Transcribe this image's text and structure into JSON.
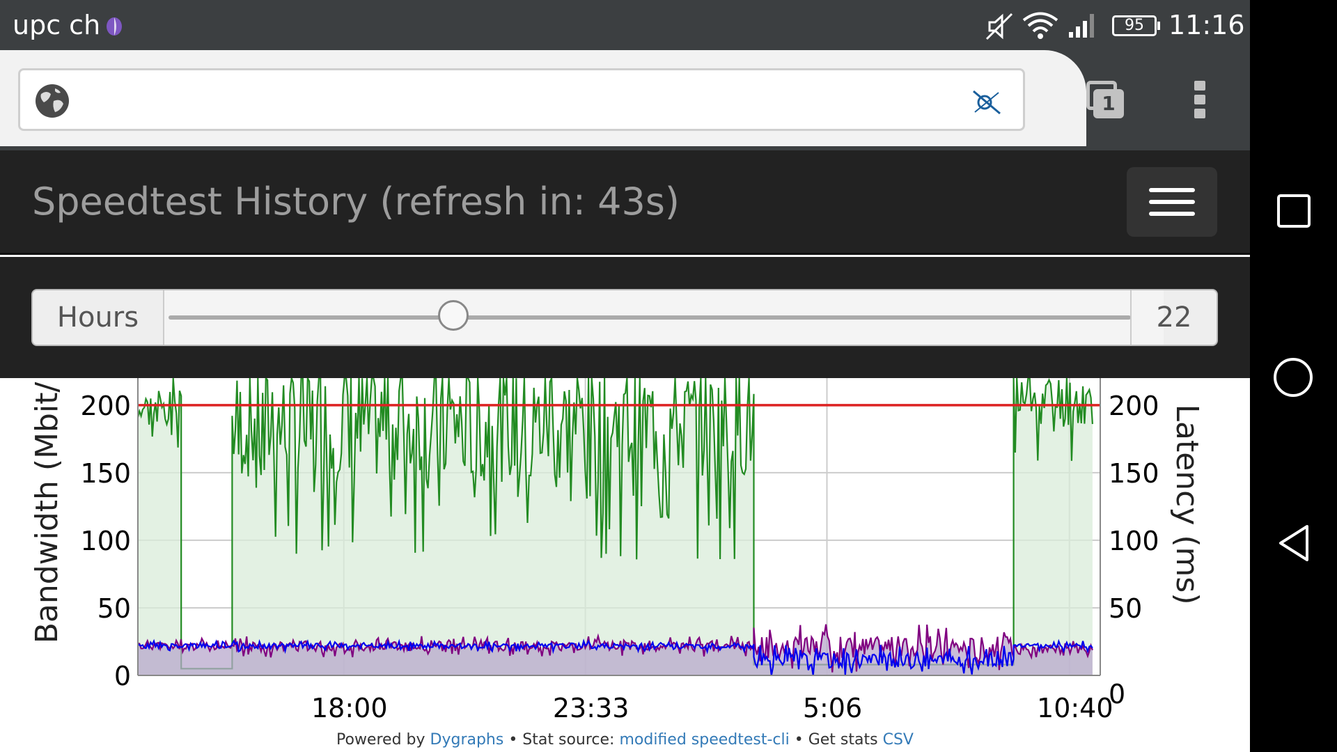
{
  "status_bar": {
    "carrier": "upc ch",
    "battery": "95",
    "time": "11:16"
  },
  "browser": {
    "url": "",
    "tab_count": "1"
  },
  "navbar": {
    "title": "Speedtest History (refresh in: 43s)"
  },
  "hours_control": {
    "label": "Hours",
    "value": "22",
    "slider_min": 1,
    "slider_max": 72
  },
  "footer": {
    "powered_prefix": "Powered by ",
    "dygraphs_link": "Dygraphs",
    "sep1": " • Stat source: ",
    "source_link": "modified speedtest-cli",
    "sep2": " • Get stats ",
    "csv_link": "CSV"
  },
  "chart_data": {
    "type": "line",
    "ylabel": "Bandwidth (Mbit/",
    "y2label": "Latency (ms)",
    "ylim": [
      0,
      220
    ],
    "y2lim": [
      0,
      220
    ],
    "y_ticks": [
      0,
      50,
      100,
      150,
      200
    ],
    "y2_ticks": [
      0,
      50,
      100,
      150,
      200
    ],
    "y_tick_labels": [
      "0",
      "50",
      "100",
      "150",
      "200"
    ],
    "y2_tick_labels": [
      "0",
      "50",
      "100",
      "150",
      "200"
    ],
    "xlim": [
      0,
      1
    ],
    "x_ticks": [
      0.214,
      0.465,
      0.716,
      0.968
    ],
    "x_tick_labels": [
      "18:00",
      "23:33",
      "5:06",
      "10:40"
    ],
    "grid": true,
    "threshold_line": {
      "value": 200,
      "color": "#dd2222"
    },
    "series": [
      {
        "color": "#228b22",
        "fill": "#d9ecd9",
        "segments": [
          {
            "x0": 0.0,
            "x1": 0.045,
            "base": 200,
            "amp": 30,
            "seed": 3
          },
          {
            "x0": 0.045,
            "x1": 0.098,
            "flat": 5
          },
          {
            "x0": 0.098,
            "x1": 0.64,
            "base": 190,
            "amp": 95,
            "seed": 7
          },
          {
            "x0": 0.64,
            "x1": 0.91,
            "flat": 8
          },
          {
            "x0": 0.91,
            "x1": 0.992,
            "base": 205,
            "amp": 45,
            "seed": 11
          }
        ]
      },
      {
        "color": "#800080",
        "fill": "#b8a8cc",
        "segments": [
          {
            "x0": 0.0,
            "x1": 0.098,
            "base": 22,
            "amp": 6,
            "seed": 5
          },
          {
            "x0": 0.098,
            "x1": 0.64,
            "base": 22,
            "amp": 8,
            "seed": 13
          },
          {
            "x0": 0.64,
            "x1": 0.91,
            "base": 22,
            "amp": 18,
            "seed": 17
          },
          {
            "x0": 0.91,
            "x1": 0.992,
            "base": 20,
            "amp": 6,
            "seed": 19
          }
        ]
      },
      {
        "color": "#0000ee",
        "fill": "none",
        "segments": [
          {
            "x0": 0.0,
            "x1": 0.098,
            "base": 22,
            "amp": 4,
            "seed": 23
          },
          {
            "x0": 0.098,
            "x1": 0.64,
            "base": 22,
            "amp": 4,
            "seed": 29
          },
          {
            "x0": 0.64,
            "x1": 0.91,
            "base": 12,
            "amp": 12,
            "seed": 31
          },
          {
            "x0": 0.91,
            "x1": 0.992,
            "base": 22,
            "amp": 4,
            "seed": 37
          }
        ]
      }
    ]
  }
}
